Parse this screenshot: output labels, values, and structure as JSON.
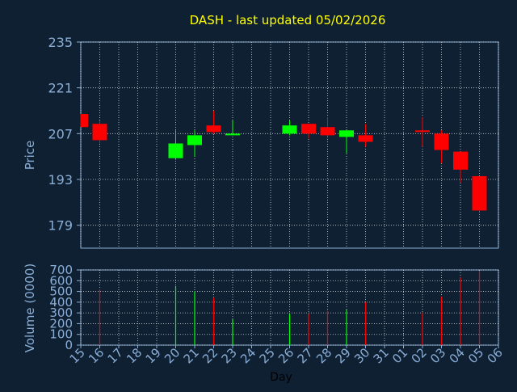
{
  "chart_data": [
    {
      "type": "candlestick",
      "title": "DASH - last updated 05/02/2026",
      "xlabel": "",
      "ylabel": "Price",
      "ylim": [
        172,
        235
      ],
      "yticks": [
        "235",
        "221",
        "207",
        "193",
        "179"
      ],
      "grid": true,
      "categories": [
        "15",
        "16",
        "17",
        "18",
        "19",
        "20",
        "21",
        "22",
        "23",
        "24",
        "25",
        "26",
        "27",
        "28",
        "29",
        "30",
        "31",
        "01",
        "02",
        "03",
        "04",
        "05",
        "06"
      ],
      "candles": [
        {
          "x": "15",
          "open": 213,
          "close": 209,
          "high": 213,
          "low": 209
        },
        {
          "x": "16",
          "open": 210,
          "close": 205,
          "high": 211,
          "low": 204
        },
        {
          "x": "20",
          "open": 199.5,
          "close": 204,
          "high": 208,
          "low": 199
        },
        {
          "x": "21",
          "open": 203.5,
          "close": 206.5,
          "high": 208,
          "low": 200
        },
        {
          "x": "22",
          "open": 209.5,
          "close": 207.5,
          "high": 214,
          "low": 207
        },
        {
          "x": "23",
          "open": 206.5,
          "close": 207,
          "high": 211,
          "low": 206.5
        },
        {
          "x": "26",
          "open": 207,
          "close": 209.5,
          "high": 211,
          "low": 206.5
        },
        {
          "x": "27",
          "open": 210,
          "close": 207,
          "high": 210,
          "low": 205.5
        },
        {
          "x": "28",
          "open": 209,
          "close": 206.5,
          "high": 212,
          "low": 206
        },
        {
          "x": "29",
          "open": 206,
          "close": 208,
          "high": 208,
          "low": 201
        },
        {
          "x": "30",
          "open": 206.5,
          "close": 204.5,
          "high": 210,
          "low": 203
        },
        {
          "x": "02",
          "open": 208,
          "close": 207.5,
          "high": 212,
          "low": 203
        },
        {
          "x": "03",
          "open": 207,
          "close": 202,
          "high": 208,
          "low": 198
        },
        {
          "x": "04",
          "open": 201.5,
          "close": 196,
          "high": 201.5,
          "low": 192
        },
        {
          "x": "05",
          "open": 194,
          "close": 183.5,
          "high": 194,
          "low": 183
        }
      ],
      "colors": {
        "up": "#00ff00",
        "down": "#ff0000",
        "grid": "#ffffff",
        "axis": "#8aaed6",
        "title": "#ffff00",
        "background": "#0f2033"
      }
    },
    {
      "type": "bar",
      "xlabel": "Day",
      "ylabel": "Volume (0000)",
      "ylim": [
        0,
        700
      ],
      "yticks": [
        "700",
        "600",
        "500",
        "400",
        "300",
        "200",
        "100",
        "0"
      ],
      "grid": true,
      "categories": [
        "15",
        "16",
        "17",
        "18",
        "19",
        "20",
        "21",
        "22",
        "23",
        "24",
        "25",
        "26",
        "27",
        "28",
        "29",
        "30",
        "31",
        "01",
        "02",
        "03",
        "04",
        "05",
        "06"
      ],
      "bars": [
        {
          "x": "16",
          "value": 520,
          "color": "down"
        },
        {
          "x": "20",
          "value": 550,
          "color": "up"
        },
        {
          "x": "21",
          "value": 500,
          "color": "up"
        },
        {
          "x": "22",
          "value": 440,
          "color": "down"
        },
        {
          "x": "23",
          "value": 240,
          "color": "up"
        },
        {
          "x": "26",
          "value": 290,
          "color": "up"
        },
        {
          "x": "27",
          "value": 290,
          "color": "down"
        },
        {
          "x": "28",
          "value": 320,
          "color": "down"
        },
        {
          "x": "29",
          "value": 330,
          "color": "up"
        },
        {
          "x": "30",
          "value": 400,
          "color": "down"
        },
        {
          "x": "02",
          "value": 300,
          "color": "down"
        },
        {
          "x": "03",
          "value": 450,
          "color": "down"
        },
        {
          "x": "04",
          "value": 630,
          "color": "down"
        },
        {
          "x": "05",
          "value": 690,
          "color": "down"
        }
      ]
    }
  ]
}
